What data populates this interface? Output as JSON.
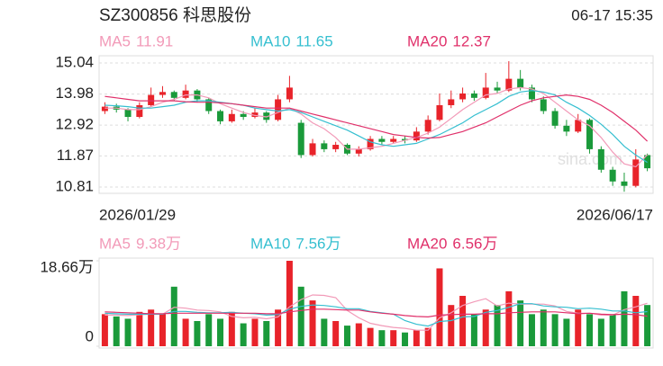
{
  "chart_data": [
    {
      "type": "candlestick",
      "title": "SZ300856 科思股份",
      "timestamp": "06-17 15:35",
      "watermark": "sina.com",
      "up_color": "#e8232a",
      "down_color": "#1a9a3a",
      "categories": [
        "2026/01/29",
        null,
        null,
        null,
        null,
        null,
        null,
        null,
        null,
        null,
        null,
        null,
        null,
        null,
        null,
        null,
        null,
        null,
        null,
        null,
        null,
        null,
        null,
        null,
        null,
        null,
        null,
        null,
        null,
        null,
        null,
        null,
        null,
        null,
        null,
        null,
        null,
        null,
        null,
        null,
        null,
        null,
        null,
        null,
        null,
        null,
        null,
        "2026/06/17"
      ],
      "open": [
        13.4,
        13.55,
        13.45,
        13.2,
        13.6,
        13.95,
        14.05,
        13.85,
        14.1,
        13.8,
        13.4,
        13.05,
        13.3,
        13.2,
        13.35,
        13.1,
        13.8,
        13.0,
        11.9,
        12.3,
        12.1,
        12.25,
        11.95,
        12.1,
        12.45,
        12.35,
        12.45,
        12.4,
        12.7,
        13.1,
        13.6,
        13.8,
        14.0,
        13.85,
        14.2,
        14.1,
        14.5,
        14.2,
        13.8,
        13.4,
        12.9,
        12.7,
        13.1,
        12.1,
        11.4,
        11.0,
        10.85,
        11.9
      ],
      "close": [
        13.55,
        13.45,
        13.2,
        13.6,
        13.95,
        14.05,
        13.85,
        14.1,
        13.8,
        13.4,
        13.05,
        13.3,
        13.2,
        13.35,
        13.1,
        13.8,
        14.2,
        11.9,
        12.3,
        12.1,
        12.25,
        11.95,
        12.1,
        12.45,
        12.35,
        12.45,
        12.4,
        12.7,
        13.1,
        13.6,
        13.8,
        14.0,
        13.85,
        14.2,
        14.1,
        14.5,
        14.2,
        13.8,
        13.4,
        12.9,
        12.7,
        13.1,
        12.1,
        11.4,
        11.0,
        10.85,
        11.75,
        11.45
      ],
      "high": [
        13.7,
        13.65,
        13.5,
        13.7,
        14.2,
        14.25,
        14.1,
        14.3,
        14.15,
        13.85,
        13.45,
        13.45,
        13.4,
        13.5,
        13.4,
        13.95,
        14.6,
        13.1,
        12.45,
        12.4,
        12.35,
        12.3,
        12.2,
        12.55,
        12.55,
        12.55,
        12.55,
        12.85,
        13.25,
        14.0,
        14.1,
        14.2,
        14.1,
        14.7,
        14.4,
        15.1,
        14.8,
        14.3,
        13.9,
        13.5,
        13.1,
        13.3,
        13.15,
        12.2,
        11.5,
        11.3,
        12.1,
        11.95
      ],
      "low": [
        13.3,
        13.35,
        13.05,
        13.15,
        13.55,
        13.85,
        13.75,
        13.8,
        13.7,
        13.3,
        12.95,
        13.0,
        13.1,
        13.15,
        13.0,
        13.05,
        13.7,
        11.8,
        11.85,
        12.0,
        12.0,
        11.9,
        11.85,
        12.05,
        12.25,
        12.3,
        12.3,
        12.35,
        12.6,
        13.05,
        13.5,
        13.7,
        13.75,
        13.8,
        14.0,
        14.05,
        14.1,
        13.7,
        13.3,
        12.8,
        12.55,
        12.65,
        11.95,
        11.3,
        10.85,
        10.65,
        10.8,
        11.35
      ],
      "series": [
        {
          "name": "MA5",
          "color": "#f29ab8",
          "values": [
            13.5,
            13.5,
            13.45,
            13.45,
            13.55,
            13.7,
            13.8,
            13.95,
            13.95,
            13.85,
            13.65,
            13.5,
            13.35,
            13.25,
            13.2,
            13.35,
            13.5,
            13.3,
            13.0,
            12.8,
            12.5,
            12.1,
            12.1,
            12.15,
            12.2,
            12.3,
            12.4,
            12.5,
            12.65,
            12.85,
            13.15,
            13.45,
            13.7,
            13.95,
            14.0,
            14.15,
            14.2,
            14.15,
            14.0,
            13.7,
            13.4,
            13.1,
            12.9,
            12.5,
            12.0,
            11.6,
            11.5,
            11.91
          ]
        },
        {
          "name": "MA10",
          "color": "#35bfd0",
          "values": [
            13.6,
            13.58,
            13.55,
            13.5,
            13.5,
            13.55,
            13.6,
            13.7,
            13.75,
            13.75,
            13.7,
            13.65,
            13.6,
            13.5,
            13.45,
            13.4,
            13.45,
            13.35,
            13.2,
            13.05,
            12.9,
            12.75,
            12.55,
            12.35,
            12.25,
            12.2,
            12.25,
            12.3,
            12.45,
            12.6,
            12.8,
            13.0,
            13.25,
            13.45,
            13.65,
            13.9,
            14.05,
            14.1,
            14.05,
            13.95,
            13.7,
            13.5,
            13.25,
            12.95,
            12.6,
            12.2,
            11.9,
            11.65
          ]
        },
        {
          "name": "MA20",
          "color": "#e0306a",
          "values": [
            13.9,
            13.85,
            13.8,
            13.75,
            13.75,
            13.75,
            13.75,
            13.72,
            13.7,
            13.7,
            13.68,
            13.65,
            13.6,
            13.55,
            13.5,
            13.5,
            13.5,
            13.4,
            13.3,
            13.2,
            13.1,
            13.0,
            12.9,
            12.8,
            12.7,
            12.6,
            12.55,
            12.5,
            12.48,
            12.5,
            12.6,
            12.7,
            12.85,
            13.0,
            13.2,
            13.4,
            13.6,
            13.75,
            13.85,
            13.9,
            13.95,
            13.9,
            13.8,
            13.6,
            13.35,
            13.05,
            12.75,
            12.37
          ]
        }
      ],
      "ylim": [
        10.81,
        15.04
      ],
      "yticks": [
        15.04,
        13.98,
        12.92,
        11.87,
        10.81
      ],
      "grid": true
    },
    {
      "type": "volume-bar",
      "values": [
        7,
        6.5,
        6,
        7.5,
        8,
        7,
        13,
        6,
        5.5,
        7,
        6,
        7.5,
        5,
        6,
        5.5,
        8,
        18.66,
        13,
        10,
        6,
        5.5,
        4.5,
        5,
        4,
        3.5,
        3.5,
        3,
        3.5,
        4,
        17,
        9,
        11,
        7,
        8,
        9,
        12,
        10,
        7,
        8,
        7,
        6,
        8,
        7,
        6,
        7,
        12,
        11,
        9
      ],
      "series": [
        {
          "name": "MA5",
          "legend_label": "9.38万",
          "color": "#f29ab8",
          "values": [
            6.8,
            6.8,
            6.7,
            6.9,
            7.0,
            7.0,
            8.5,
            8.3,
            7.9,
            7.8,
            7.5,
            6.5,
            6.2,
            6.3,
            6.0,
            6.4,
            8.6,
            10.2,
            11.2,
            11.1,
            10.6,
            7.8,
            6.2,
            5.0,
            4.5,
            4.1,
            3.9,
            3.5,
            3.5,
            6.2,
            7.3,
            8.9,
            9.7,
            10.4,
            8.8,
            9.4,
            9.2,
            9.2,
            9.2,
            8.8,
            7.6,
            7.2,
            7.2,
            6.8,
            6.8,
            8.0,
            8.6,
            9.38
          ]
        },
        {
          "name": "MA10",
          "legend_label": "7.56万",
          "color": "#35bfd0",
          "values": [
            7.2,
            7.1,
            7.0,
            7.0,
            7.0,
            7.0,
            7.6,
            7.6,
            7.4,
            7.3,
            7.3,
            7.4,
            7.2,
            7.1,
            6.8,
            6.9,
            8.1,
            8.7,
            9.0,
            8.9,
            8.6,
            8.2,
            8.2,
            7.6,
            7.3,
            7.0,
            5.6,
            4.8,
            4.4,
            5.4,
            5.6,
            6.4,
            6.5,
            7.4,
            7.8,
            8.5,
            9.3,
            9.3,
            8.8,
            8.6,
            8.5,
            8.2,
            8.3,
            8.1,
            7.7,
            7.7,
            7.3,
            7.56
          ]
        },
        {
          "name": "MA20",
          "legend_label": "6.56万",
          "color": "#e0306a",
          "values": [
            7.5,
            7.4,
            7.3,
            7.2,
            7.1,
            7.1,
            7.2,
            7.2,
            7.2,
            7.2,
            7.2,
            7.2,
            7.2,
            7.2,
            7.1,
            7.1,
            7.5,
            7.8,
            8.1,
            8.1,
            8.0,
            7.9,
            7.9,
            7.5,
            7.2,
            7.0,
            6.7,
            6.5,
            6.4,
            6.8,
            6.9,
            7.0,
            7.0,
            7.1,
            7.1,
            7.3,
            7.4,
            7.5,
            7.5,
            7.5,
            7.3,
            7.1,
            7.2,
            7.0,
            6.9,
            7.0,
            6.9,
            6.56
          ]
        }
      ],
      "ylim": [
        0,
        18.66
      ],
      "yticks": [
        {
          "value": 18.66,
          "label": "18.66万"
        },
        0
      ]
    }
  ]
}
